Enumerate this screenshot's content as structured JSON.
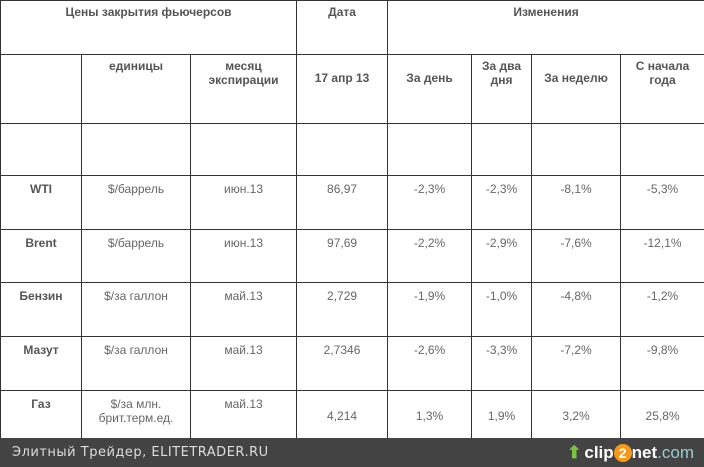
{
  "header": {
    "title": "Цены закрытия фьючерсов",
    "date": "Дата",
    "changes": "Изменения",
    "units": "единицы",
    "month": "месяц экспирации",
    "date_value": "17 апр 13",
    "day": "За день",
    "two_days": "За два дня",
    "week": "За неделю",
    "ytd": "С начала года"
  },
  "rows": [
    {
      "name": "WTI",
      "unit": "$/баррель",
      "month": "июн.13",
      "price": "86,97",
      "day": "-2,3%",
      "two": "-2,3%",
      "week": "-8,1%",
      "ytd": "-5,3%"
    },
    {
      "name": "Brent",
      "unit": "$/баррель",
      "month": "июн.13",
      "price": "97,69",
      "day": "-2,2%",
      "two": "-2,9%",
      "week": "-7,6%",
      "ytd": "-12,1%"
    },
    {
      "name": "Бензин",
      "unit": "$/за галлон",
      "month": "май.13",
      "price": "2,729",
      "day": "-1,9%",
      "two": "-1,0%",
      "week": "-4,8%",
      "ytd": "-1,2%"
    },
    {
      "name": "Мазут",
      "unit": "$/за галлон",
      "month": "май.13",
      "price": "2,7346",
      "day": "-2,6%",
      "two": "-3,3%",
      "week": "-7,2%",
      "ytd": "-9,8%"
    },
    {
      "name": "Газ",
      "unit": "$/за млн. брит.терм.ед.",
      "month": "май.13",
      "price": "4,214",
      "day": "1,3%",
      "two": "1,9%",
      "week": "3,2%",
      "ytd": "25,8%"
    }
  ],
  "footer": {
    "text": "Элитный Трейдер, ELITETRADER.RU",
    "logo": "clip2net.com",
    "logo_a": "clip",
    "logo_b": "2",
    "logo_c": "net",
    "logo_d": ".com"
  }
}
